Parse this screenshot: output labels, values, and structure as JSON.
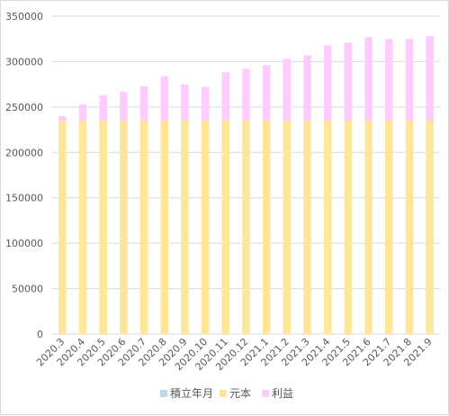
{
  "chart_data": {
    "type": "bar",
    "stacked": true,
    "title": "",
    "xlabel": "",
    "ylabel": "",
    "ylim": [
      0,
      350000
    ],
    "yticks": [
      0,
      50000,
      100000,
      150000,
      200000,
      250000,
      300000,
      350000
    ],
    "grid": true,
    "legend_position": "bottom",
    "categories": [
      "2020.3",
      "2020.4",
      "2020.5",
      "2020.6",
      "2020.7",
      "2020.8",
      "2020.9",
      "2020.10",
      "2020.11",
      "2020.12",
      "2021.1",
      "2021.2",
      "2021.3",
      "2021.4",
      "2021.5",
      "2021.6",
      "2021.7",
      "2021.8",
      "2021.9"
    ],
    "series": [
      {
        "name": "積立年月",
        "color": "#bdd7ee",
        "values": [
          0,
          0,
          0,
          0,
          0,
          0,
          0,
          0,
          0,
          0,
          0,
          0,
          0,
          0,
          0,
          0,
          0,
          0,
          0
        ]
      },
      {
        "name": "元本",
        "color": "#ffe699",
        "values": [
          235000,
          235000,
          235000,
          235000,
          235000,
          235000,
          235000,
          235000,
          235000,
          235000,
          235000,
          235000,
          235000,
          235000,
          235000,
          235000,
          235000,
          235000,
          235000
        ]
      },
      {
        "name": "利益",
        "color": "#ffccff",
        "values": [
          5000,
          18000,
          28000,
          32000,
          38000,
          49000,
          40000,
          37000,
          53000,
          57000,
          61000,
          68000,
          72000,
          83000,
          86000,
          92000,
          90000,
          90000,
          93000
        ]
      }
    ]
  }
}
